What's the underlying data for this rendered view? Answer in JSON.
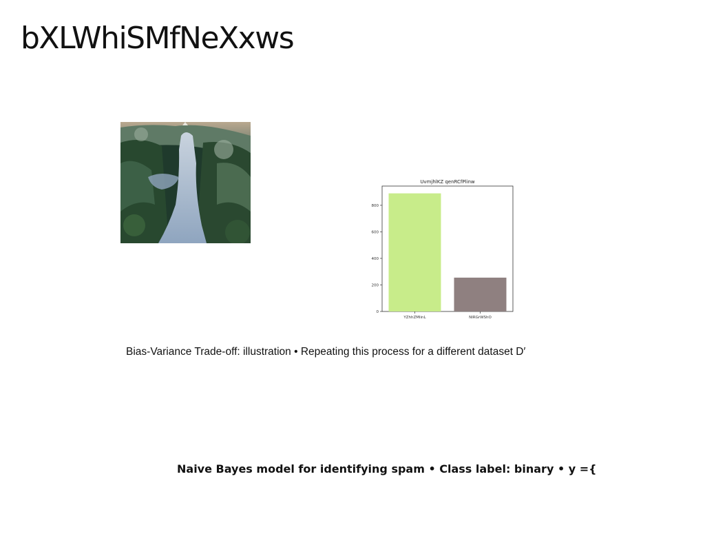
{
  "slide": {
    "title": "bXLWhiSMfNeXxws",
    "photo_alt": "stone path through green shrubs",
    "caption_1": "Bias-Variance Trade-off: illustration • Repeating this process for a different dataset D′",
    "caption_2": "Naive Bayes model for identifying spam • Class label: binary • y ={"
  },
  "chart_data": {
    "type": "bar",
    "title": "UvmjhlKZ qenRCfPlinw",
    "categories": [
      "YZhhZMlinL",
      "NlRGrWShO"
    ],
    "values": [
      890,
      255
    ],
    "colors": [
      "#c8ec8a",
      "#8f8080"
    ],
    "ylim": [
      0,
      945
    ],
    "yticks": [
      0,
      200,
      400,
      600,
      800
    ],
    "xlabel": "",
    "ylabel": "",
    "grid": false
  }
}
